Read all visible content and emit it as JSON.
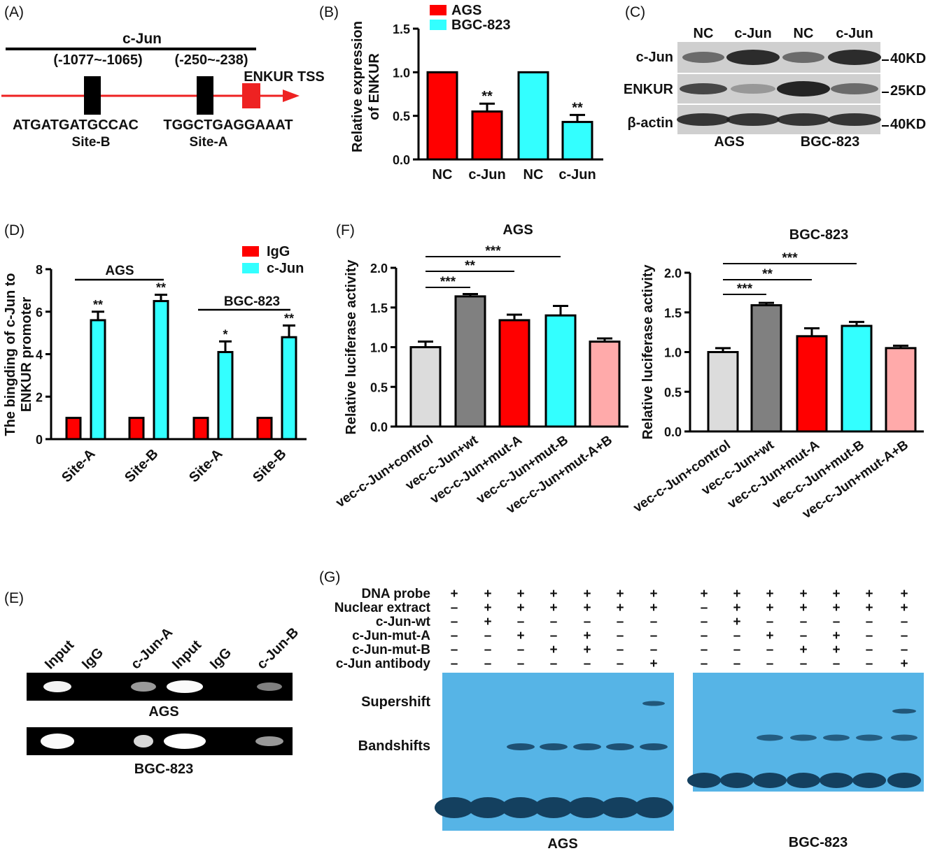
{
  "panel_labels": {
    "a": "(A)",
    "b": "(B)",
    "c": "(C)",
    "d": "(D)",
    "e": "(E)",
    "f": "(F)",
    "g": "(G)"
  },
  "colors": {
    "red": "#ff0000",
    "cyan": "#33ffff",
    "light_gray": "#dcdcdc",
    "dark_gray": "#808080",
    "pink": "#ffaaaa",
    "gel_blue": "#56b4e6",
    "gel_band": "#14405f"
  },
  "panel_a": {
    "title": "c-Jun",
    "pos_b": "(-1077~-1065)",
    "pos_a": "(-250~-238)",
    "tss": "ENKUR TSS",
    "seq_b": "ATGATGATGCCAC",
    "seq_a": "TGGCTGAGGAAAT",
    "site_b": "Site-B",
    "site_a": "Site-A"
  },
  "panel_c": {
    "lanes": [
      "NC",
      "c-Jun",
      "NC",
      "c-Jun"
    ],
    "rows": [
      "c-Jun",
      "ENKUR",
      "β-actin"
    ],
    "sizes": [
      "40KD",
      "25KD",
      "40KD"
    ],
    "cells": [
      "AGS",
      "BGC-823"
    ]
  },
  "panel_e": {
    "lanes": [
      "Input",
      "IgG",
      "c-Jun-A",
      "Input",
      "IgG",
      "c-Jun-B"
    ],
    "rows": [
      "AGS",
      "BGC-823"
    ]
  },
  "panel_g": {
    "rows": [
      {
        "label": "DNA probe",
        "signs": [
          "+",
          "+",
          "+",
          "+",
          "+",
          "+",
          "+"
        ]
      },
      {
        "label": "Nuclear extract",
        "signs": [
          "–",
          "+",
          "+",
          "+",
          "+",
          "+",
          "+"
        ]
      },
      {
        "label": "c-Jun-wt",
        "signs": [
          "–",
          "+",
          "–",
          "–",
          "–",
          "–",
          "–"
        ]
      },
      {
        "label": "c-Jun-mut-A",
        "signs": [
          "–",
          "–",
          "+",
          "–",
          "+",
          "–",
          "–"
        ]
      },
      {
        "label": "c-Jun-mut-B",
        "signs": [
          "–",
          "–",
          "–",
          "+",
          "+",
          "–",
          "–"
        ]
      },
      {
        "label": "c-Jun antibody",
        "signs": [
          "–",
          "–",
          "–",
          "–",
          "–",
          "–",
          "+"
        ]
      }
    ],
    "supershift": "Supershift",
    "bandshifts": "Bandshifts",
    "cells": [
      "AGS",
      "BGC-823"
    ]
  },
  "chart_data": [
    {
      "id": "B",
      "type": "bar",
      "ylabel": "Relative expression of ENKUR",
      "ylim": [
        0,
        1.5
      ],
      "yticks": [
        "0.0",
        "0.5",
        "1.0",
        "1.5"
      ],
      "categories": [
        "NC",
        "c-Jun",
        "NC",
        "c-Jun"
      ],
      "legend": [
        {
          "name": "AGS"
        },
        {
          "name": "BGC-823"
        }
      ],
      "values": [
        1.0,
        0.55,
        1.0,
        0.43
      ],
      "errors": [
        0,
        0.09,
        0,
        0.08
      ],
      "significance": [
        "",
        "**",
        "",
        "**"
      ]
    },
    {
      "id": "D",
      "type": "bar",
      "ylabel": "The bingding of c-Jun to ENKUR promoter",
      "ylim": [
        0,
        8
      ],
      "yticks": [
        "0",
        "2",
        "4",
        "6",
        "8"
      ],
      "groups": [
        "Site-A",
        "Site-B",
        "Site-A",
        "Site-B"
      ],
      "cell_brackets": [
        "AGS",
        "BGC-823"
      ],
      "series": [
        {
          "name": "IgG",
          "values": [
            1,
            1,
            1,
            1
          ],
          "errors": [
            0,
            0,
            0,
            0
          ],
          "significance": [
            "",
            "",
            "",
            ""
          ]
        },
        {
          "name": "c-Jun",
          "values": [
            5.6,
            6.5,
            4.1,
            4.8
          ],
          "errors": [
            0.4,
            0.3,
            0.5,
            0.55
          ],
          "significance": [
            "**",
            "**",
            "*",
            "**"
          ]
        }
      ]
    },
    {
      "id": "F-AGS",
      "type": "bar",
      "title": "AGS",
      "ylabel": "Relative luciferase activity",
      "ylim": [
        0,
        2.0
      ],
      "yticks": [
        "0.0",
        "0.5",
        "1.0",
        "1.5",
        "2.0"
      ],
      "categories": [
        "vec-c-Jun+control",
        "vec-c-Jun+wt",
        "vec-c-Jun+mut-A",
        "vec-c-Jun+mut-B",
        "vec-c-Jun+mut-A+B"
      ],
      "values": [
        1.0,
        1.64,
        1.34,
        1.4,
        1.07
      ],
      "errors": [
        0.07,
        0.03,
        0.07,
        0.12,
        0.04
      ],
      "comparisons": [
        {
          "from": 0,
          "to": 1,
          "label": "***"
        },
        {
          "from": 0,
          "to": 2,
          "label": "**"
        },
        {
          "from": 0,
          "to": 3,
          "label": "***"
        }
      ]
    },
    {
      "id": "F-BGC",
      "type": "bar",
      "title": "BGC-823",
      "ylabel": "Relative luciferase activity",
      "ylim": [
        0,
        2.0
      ],
      "yticks": [
        "0.0",
        "0.5",
        "1.0",
        "1.5",
        "2.0"
      ],
      "categories": [
        "vec-c-Jun+control",
        "vec-c-Jun+wt",
        "vec-c-Jun+mut-A",
        "vec-c-Jun+mut-B",
        "vec-c-Jun+mut-A+B"
      ],
      "values": [
        1.0,
        1.59,
        1.2,
        1.33,
        1.05
      ],
      "errors": [
        0.05,
        0.03,
        0.1,
        0.05,
        0.03
      ],
      "comparisons": [
        {
          "from": 0,
          "to": 1,
          "label": "***"
        },
        {
          "from": 0,
          "to": 2,
          "label": "**"
        },
        {
          "from": 0,
          "to": 3,
          "label": "***"
        }
      ]
    }
  ]
}
